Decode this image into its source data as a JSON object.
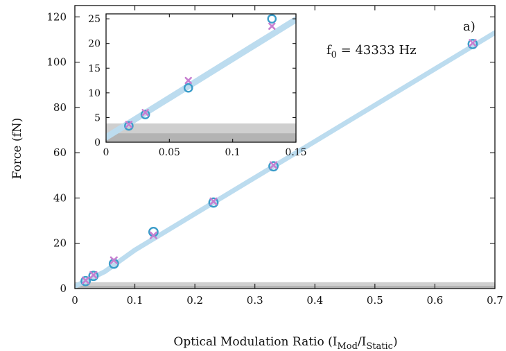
{
  "chart_data": {
    "type": "scatter",
    "panel_label": "a)",
    "annotation": {
      "base": "f",
      "sub": "0",
      "rest": " = 43333 Hz"
    },
    "xlabel": {
      "base": "Optical Modulation Ratio (I",
      "sub1": "Mod",
      "mid": "/I",
      "sub2": "Static",
      "end": ")"
    },
    "ylabel": "Force (fN)",
    "xlim": [
      0,
      0.7
    ],
    "ylim": [
      0,
      125
    ],
    "xticks": [
      0,
      0.1,
      0.2,
      0.3,
      0.4,
      0.5,
      0.6,
      0.7
    ],
    "xtick_labels": [
      "0",
      "0.1",
      "0.2",
      "0.3",
      "0.4",
      "0.5",
      "0.6",
      "0.7"
    ],
    "yticks": [
      0,
      20,
      40,
      60,
      80,
      100,
      120
    ],
    "ytick_labels": [
      "0",
      "20",
      "40",
      "60",
      "80",
      "100",
      "120"
    ],
    "series": [
      {
        "marker": "circle",
        "color": "#3a9cc9",
        "x": [
          0.018,
          0.031,
          0.065,
          0.131,
          0.231,
          0.331,
          0.663
        ],
        "y": [
          3.3,
          5.6,
          11.0,
          25.0,
          38.0,
          54.0,
          108.0
        ]
      },
      {
        "marker": "x",
        "color": "#c77fd0",
        "x": [
          0.018,
          0.031,
          0.065,
          0.131,
          0.231,
          0.331,
          0.663
        ],
        "y": [
          3.6,
          6.0,
          12.5,
          23.5,
          38.5,
          54.5,
          108.5
        ]
      }
    ],
    "fit_band": {
      "color": "#bcdcef",
      "x": [
        0.0,
        0.05,
        0.1,
        0.2,
        0.3,
        0.4,
        0.5,
        0.6,
        0.7
      ],
      "y": [
        1.0,
        7.5,
        17.0,
        33.0,
        49.0,
        65.0,
        81.0,
        97.0,
        113.0
      ]
    },
    "noise_floor": {
      "color": "#cfcfcf",
      "dark_color": "#b3b3b3",
      "y": [
        0,
        2.8
      ],
      "dark_y": [
        0,
        1.2
      ]
    },
    "inset": {
      "xlim": [
        0,
        0.15
      ],
      "ylim": [
        0,
        26
      ],
      "xticks": [
        0,
        0.05,
        0.1,
        0.15
      ],
      "xtick_labels": [
        "0",
        "0.05",
        "0.1",
        "0.15"
      ],
      "yticks": [
        0,
        5,
        10,
        15,
        20,
        25
      ],
      "ytick_labels": [
        "0",
        "5",
        "10",
        "15",
        "20",
        "25"
      ],
      "fit_band_y_at_0": 1.0,
      "fit_band_slope": 159.0,
      "noise_floor": {
        "y": [
          0,
          3.8
        ],
        "dark_y": [
          0,
          1.8
        ]
      }
    }
  }
}
